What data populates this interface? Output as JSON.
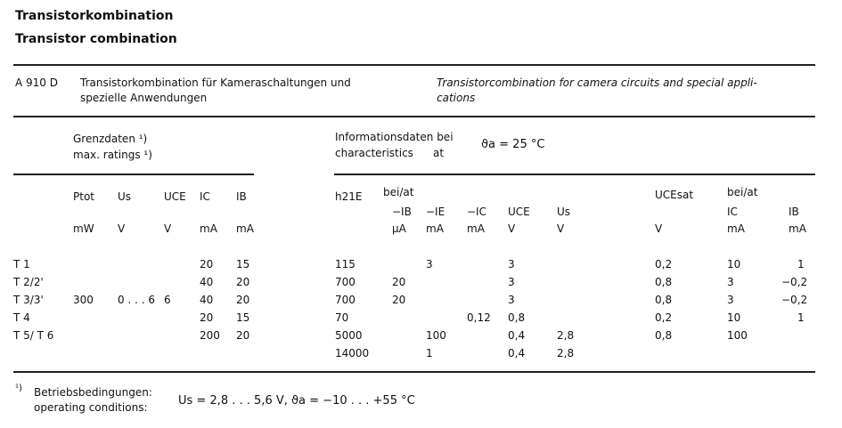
{
  "title_de": "Transistorkombination",
  "title_en": "Transistor combination",
  "type": "A 910 D",
  "desc_de_1": "Transistorkombination für Kameraschaltungen und",
  "desc_de_2": "spezielle Anwendungen",
  "desc_en_1": "Transistorcombination for camera circuits and special appli-",
  "desc_en_2": "cations",
  "limits_de": "Grenzdaten ¹)",
  "limits_en": "max. ratings ¹)",
  "char_de": "Informationsdaten bei",
  "char_en": "characteristics",
  "at": "at",
  "temp": "ϑa = 25 °C",
  "headers": {
    "ptot": "Ptot",
    "us": "Us",
    "uce": "UCE",
    "ic": "IC",
    "ib": "IB",
    "h21e": "h21E",
    "bei1": "bei/at",
    "mib": "−IB",
    "mie": "−IE",
    "mic": "−IC",
    "uce2": "UCE",
    "us2": "Us",
    "ucesat": "UCEsat",
    "bei2": "bei/at",
    "ic2": "IC",
    "ib2": "IB"
  },
  "units": {
    "ptot": "mW",
    "us": "V",
    "uce": "V",
    "ic": "mA",
    "ib": "mA",
    "mib": "µA",
    "mie": "mA",
    "mic": "mA",
    "uce2": "V",
    "us2": "V",
    "ucesat": "V",
    "ic2": "mA",
    "ib2": "mA"
  },
  "rows": [
    {
      "name": "T 1",
      "ptot": "",
      "us": "",
      "uce": "",
      "ic": "20",
      "ib": "15",
      "h21e": "115",
      "mib": "",
      "mie": "3",
      "mic": "",
      "uce2": "3",
      "us2": "",
      "ucesat": "0,2",
      "ic2": "10",
      "ib2": "1"
    },
    {
      "name": "T 2/2'",
      "ptot": "",
      "us": "",
      "uce": "",
      "ic": "40",
      "ib": "20",
      "h21e": "700",
      "mib": "20",
      "mie": "",
      "mic": "",
      "uce2": "3",
      "us2": "",
      "ucesat": "0,8",
      "ic2": "3",
      "ib2": "−0,2"
    },
    {
      "name": "T 3/3'",
      "ptot": "300",
      "us": "0 . . . 6",
      "uce": "6",
      "ic": "40",
      "ib": "20",
      "h21e": "700",
      "mib": "20",
      "mie": "",
      "mic": "",
      "uce2": "3",
      "us2": "",
      "ucesat": "0,8",
      "ic2": "3",
      "ib2": "−0,2"
    },
    {
      "name": "T 4",
      "ptot": "",
      "us": "",
      "uce": "",
      "ic": "20",
      "ib": "15",
      "h21e": "70",
      "mib": "",
      "mie": "",
      "mic": "0,12",
      "uce2": "0,8",
      "us2": "",
      "ucesat": "0,2",
      "ic2": "10",
      "ib2": "1"
    },
    {
      "name": "T 5/ T 6",
      "ptot": "",
      "us": "",
      "uce": "",
      "ic": "200",
      "ib": "20",
      "h21e": "5000",
      "mib": "",
      "mie": "100",
      "mic": "",
      "uce2": "0,4",
      "us2": "2,8",
      "ucesat": "0,8",
      "ic2": "100",
      "ib2": ""
    },
    {
      "name": "",
      "ptot": "",
      "us": "",
      "uce": "",
      "ic": "",
      "ib": "",
      "h21e": "14000",
      "mib": "",
      "mie": "1",
      "mic": "",
      "uce2": "0,4",
      "us2": "2,8",
      "ucesat": "",
      "ic2": "",
      "ib2": ""
    }
  ],
  "footnote_mark": "¹)",
  "footnote_de": "Betriebsbedingungen:",
  "footnote_en": "operating conditions:",
  "footnote_values": "Us = 2,8 . . . 5,6 V,  ϑa = −10 . . . +55 °C"
}
